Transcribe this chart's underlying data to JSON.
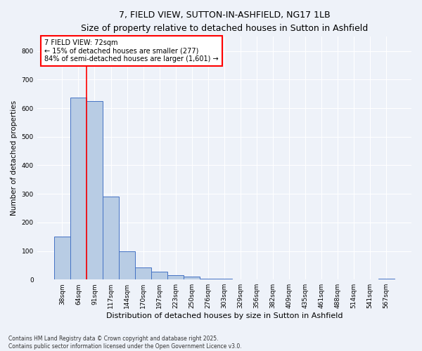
{
  "title": "7, FIELD VIEW, SUTTON-IN-ASHFIELD, NG17 1LB",
  "subtitle": "Size of property relative to detached houses in Sutton in Ashfield",
  "xlabel": "Distribution of detached houses by size in Sutton in Ashfield",
  "ylabel": "Number of detached properties",
  "categories": [
    "38sqm",
    "64sqm",
    "91sqm",
    "117sqm",
    "144sqm",
    "170sqm",
    "197sqm",
    "223sqm",
    "250sqm",
    "276sqm",
    "303sqm",
    "329sqm",
    "356sqm",
    "382sqm",
    "409sqm",
    "435sqm",
    "461sqm",
    "488sqm",
    "514sqm",
    "541sqm",
    "567sqm"
  ],
  "values": [
    150,
    638,
    625,
    290,
    100,
    42,
    28,
    15,
    10,
    4,
    2,
    0,
    0,
    0,
    1,
    0,
    0,
    0,
    0,
    0,
    2
  ],
  "bar_color": "#b8cce4",
  "bar_edge_color": "#4472c4",
  "annotation_text": "7 FIELD VIEW: 72sqm\n← 15% of detached houses are smaller (277)\n84% of semi-detached houses are larger (1,601) →",
  "ylim": [
    0,
    850
  ],
  "yticks": [
    0,
    100,
    200,
    300,
    400,
    500,
    600,
    700,
    800
  ],
  "background_color": "#eef2f9",
  "grid_color": "#ffffff",
  "footnote": "Contains HM Land Registry data © Crown copyright and database right 2025.\nContains public sector information licensed under the Open Government Licence v3.0.",
  "red_line_x": 1.5
}
